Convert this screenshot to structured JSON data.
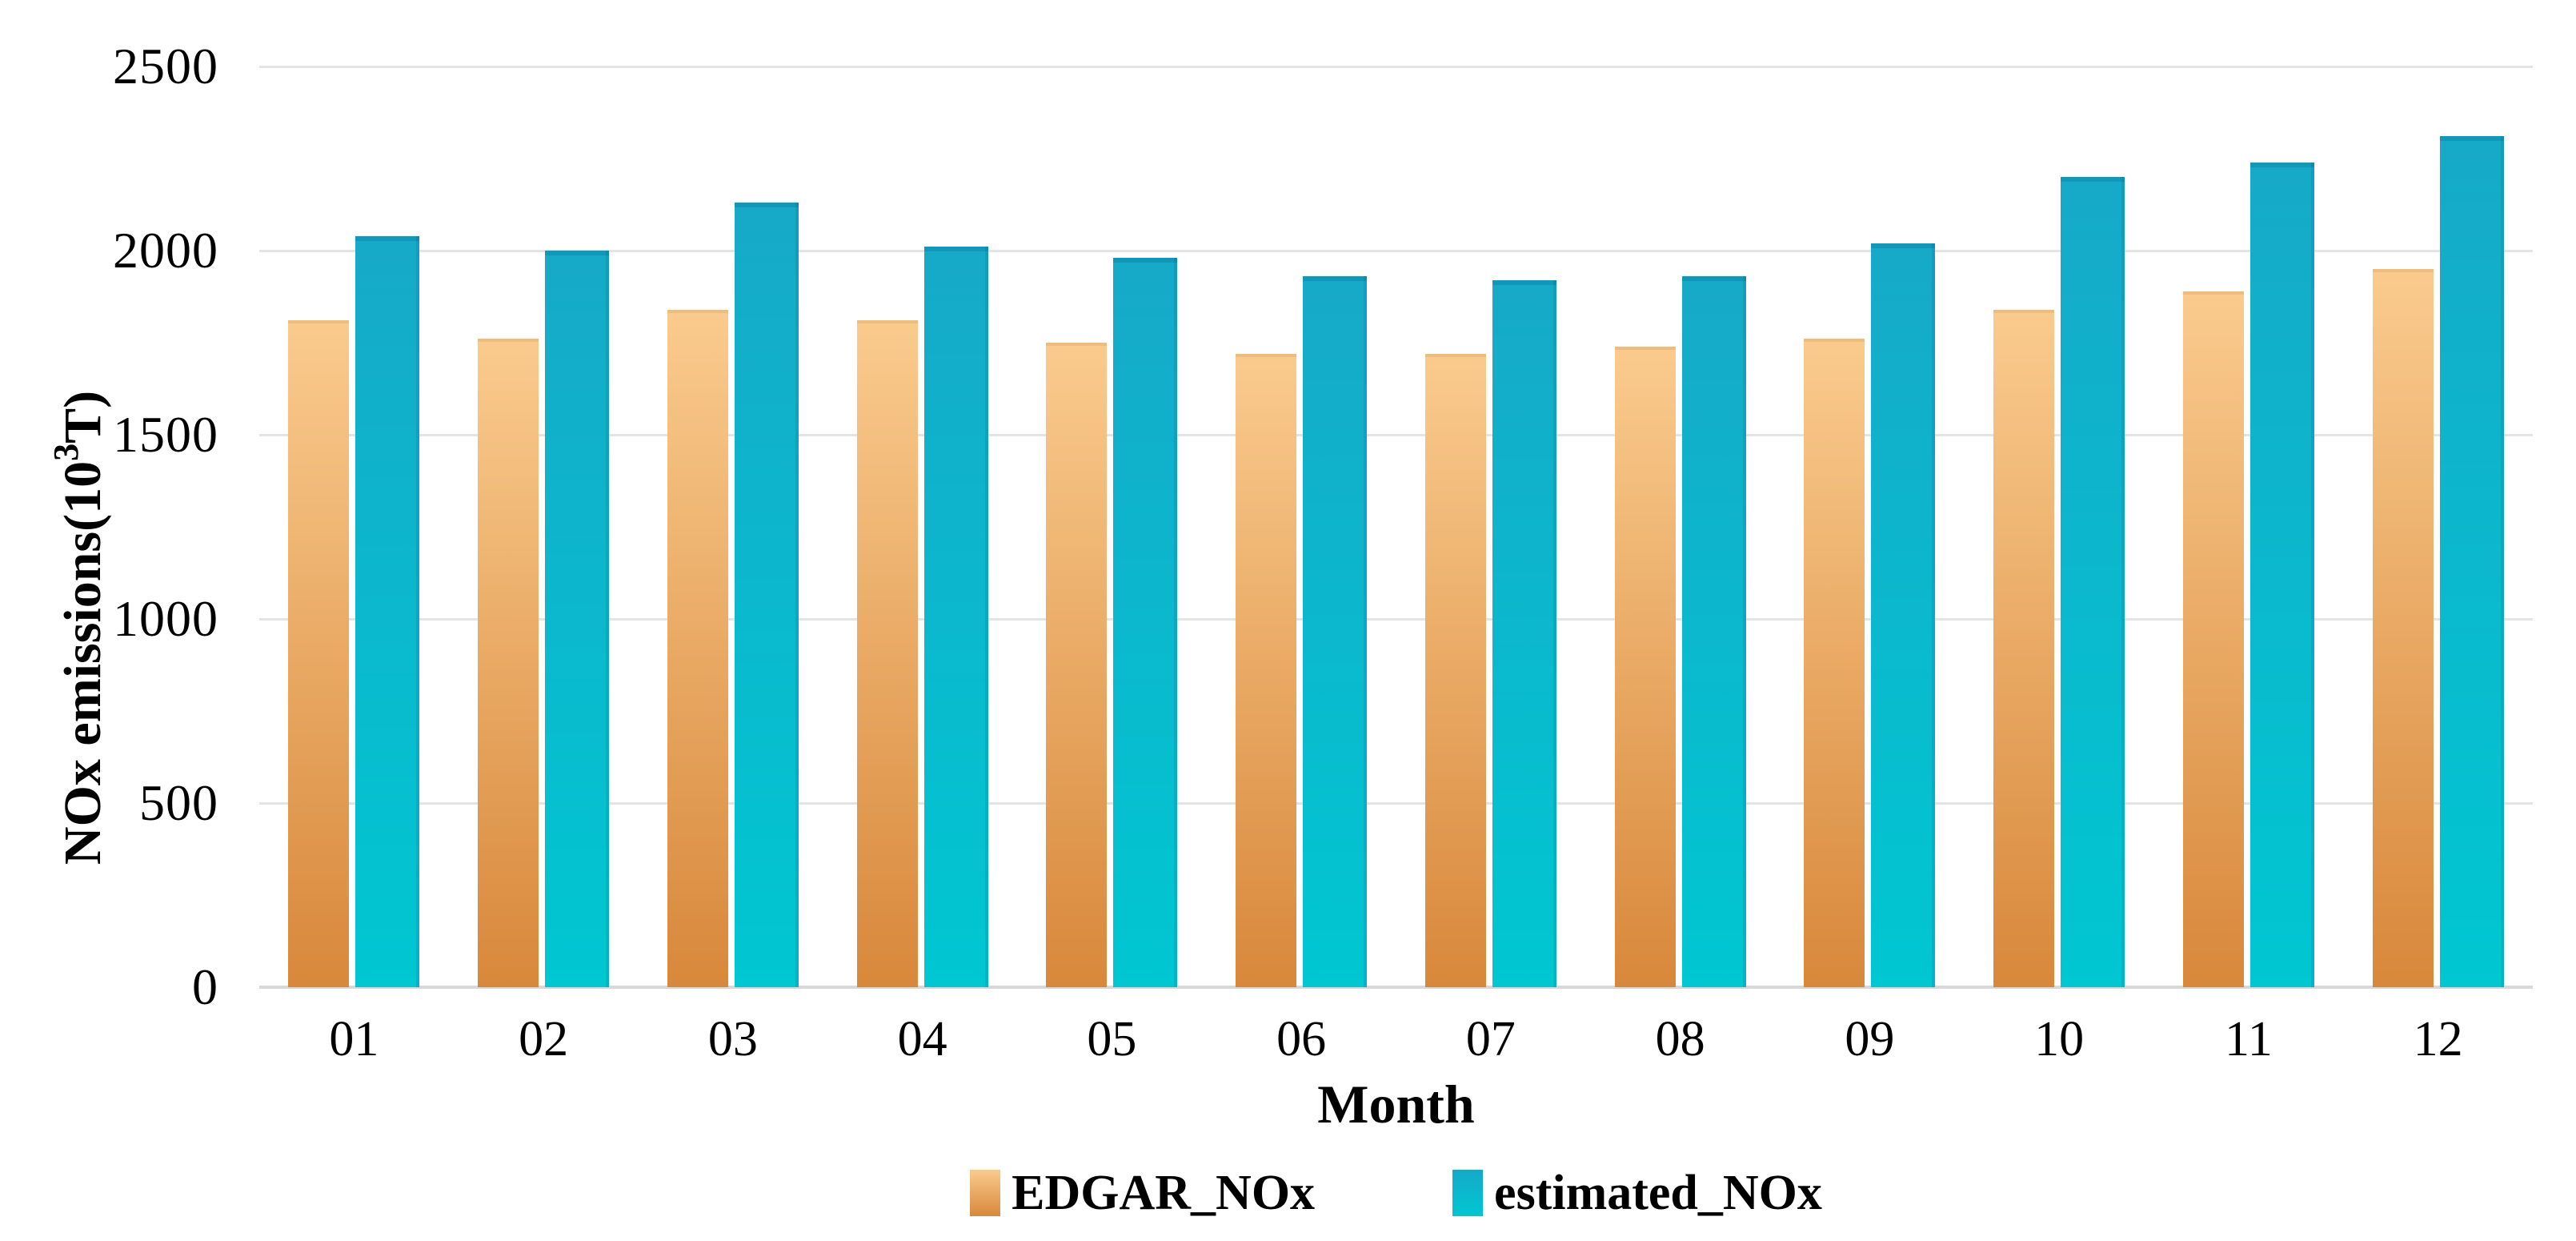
{
  "chart_data": {
    "type": "bar",
    "categories": [
      "01",
      "02",
      "03",
      "04",
      "05",
      "06",
      "07",
      "08",
      "09",
      "10",
      "11",
      "12"
    ],
    "series": [
      {
        "name": "EDGAR_NOx",
        "color_top": "#FACB8E",
        "color_bottom": "#D8883B",
        "values": [
          1810,
          1760,
          1840,
          1810,
          1750,
          1720,
          1720,
          1740,
          1760,
          1840,
          1890,
          1950
        ]
      },
      {
        "name": "estimated_NOx",
        "color_top": "#16A9C8",
        "color_bottom": "#00C7D2",
        "values": [
          2040,
          2000,
          2130,
          2010,
          1980,
          1930,
          1920,
          1930,
          2020,
          2200,
          2240,
          2310
        ]
      }
    ],
    "xlabel": "Month",
    "ylabel": "NOx emissions(10³T)",
    "ylabel_parts": {
      "prefix": "NOx emissions(10",
      "sup": "3",
      "suffix": "T)"
    },
    "ylim": [
      0,
      2500
    ],
    "yticks": [
      0,
      500,
      1000,
      1500,
      2000,
      2500
    ],
    "grid": true,
    "gridline_color": "#E4E4E4",
    "baseline_color": "#D8D8D8",
    "legend_position": "bottom"
  }
}
